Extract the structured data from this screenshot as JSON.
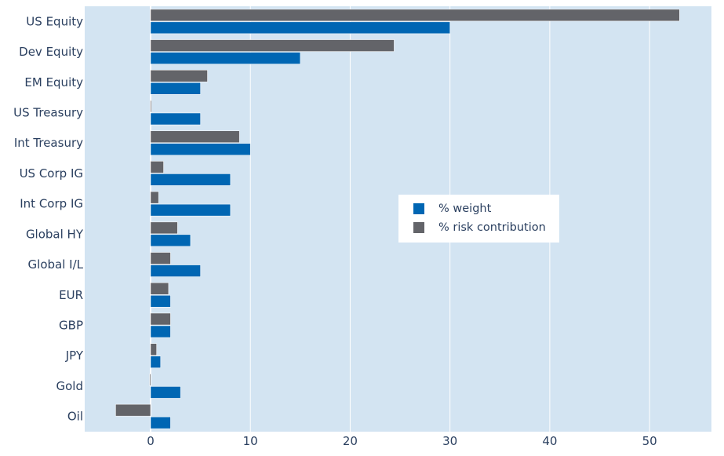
{
  "chart_data": {
    "type": "bar",
    "orientation": "horizontal",
    "categories": [
      "US Equity",
      "Dev Equity",
      "EM Equity",
      "US Treasury",
      "Int Treasury",
      "US Corp IG",
      "Int Corp IG",
      "Global HY",
      "Global I/L",
      "EUR",
      "GBP",
      "JPY",
      "Gold",
      "Oil"
    ],
    "series": [
      {
        "name": "% weight",
        "color": "#0066b3",
        "values": [
          30,
          15,
          5,
          5,
          10,
          8,
          8,
          4,
          5,
          2,
          2,
          1,
          3,
          2
        ]
      },
      {
        "name": "% risk contribution",
        "color": "#636469",
        "values": [
          53,
          24.4,
          5.7,
          0.1,
          8.9,
          1.3,
          0.8,
          2.7,
          2,
          1.8,
          2,
          0.6,
          -0.1,
          -3.5
        ]
      }
    ],
    "xlim": [
      -6.6,
      56.2
    ],
    "xticks": [
      0,
      10,
      20,
      30,
      40,
      50
    ],
    "grid": true,
    "legend": "center-right",
    "plot_background": "#d3e4f2"
  }
}
